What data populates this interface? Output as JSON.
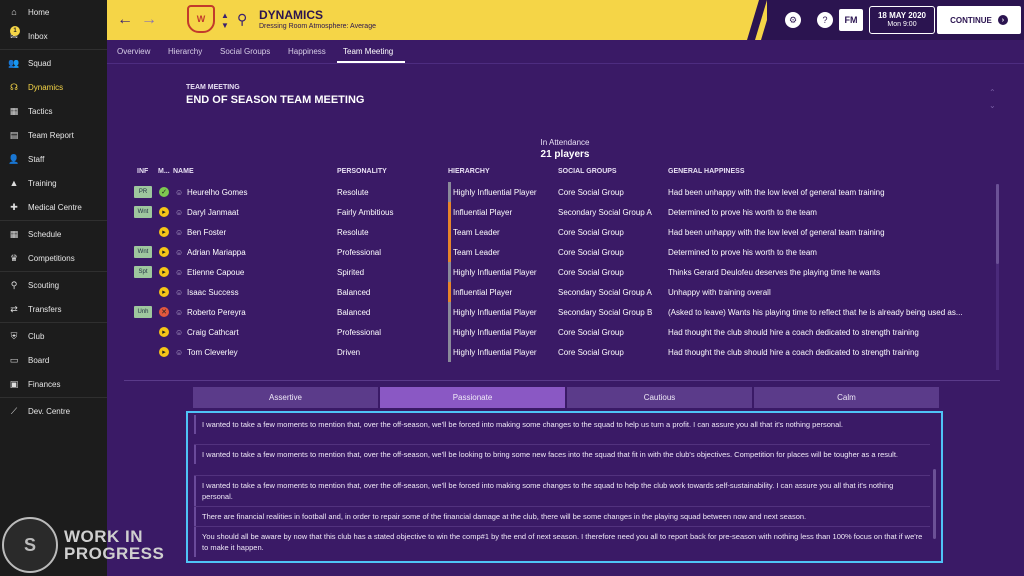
{
  "sidebar": {
    "items": [
      {
        "label": "Home",
        "icon": "home-icon",
        "glyph": "⌂"
      },
      {
        "label": "Inbox",
        "icon": "inbox-icon",
        "glyph": "✉",
        "badge": "1"
      },
      {
        "label": "Squad",
        "icon": "squad-icon",
        "glyph": "👥"
      },
      {
        "label": "Dynamics",
        "icon": "dynamics-icon",
        "glyph": "☊"
      },
      {
        "label": "Tactics",
        "icon": "tactics-icon",
        "glyph": "▦"
      },
      {
        "label": "Team Report",
        "icon": "team-report-icon",
        "glyph": "▤"
      },
      {
        "label": "Staff",
        "icon": "staff-icon",
        "glyph": "👤"
      },
      {
        "label": "Training",
        "icon": "training-icon",
        "glyph": "▲"
      },
      {
        "label": "Medical Centre",
        "icon": "medical-icon",
        "glyph": "✚"
      },
      {
        "label": "Schedule",
        "icon": "schedule-icon",
        "glyph": "▦"
      },
      {
        "label": "Competitions",
        "icon": "trophy-icon",
        "glyph": "♛"
      },
      {
        "label": "Scouting",
        "icon": "scouting-icon",
        "glyph": "⚲"
      },
      {
        "label": "Transfers",
        "icon": "transfers-icon",
        "glyph": "⇄"
      },
      {
        "label": "Club",
        "icon": "club-icon",
        "glyph": "⛨"
      },
      {
        "label": "Board",
        "icon": "board-icon",
        "glyph": "▭"
      },
      {
        "label": "Finances",
        "icon": "finances-icon",
        "glyph": "▣"
      },
      {
        "label": "Dev. Centre",
        "icon": "dev-centre-icon",
        "glyph": "⟋"
      }
    ],
    "active": "Dynamics"
  },
  "watermark": {
    "line1": "WORK IN",
    "line2": "PROGRESS"
  },
  "header": {
    "title": "DYNAMICS",
    "subtitle": "Dressing Room Atmosphere: Average",
    "fm_logo": "FM",
    "date": "18 MAY 2020",
    "time": "Mon 9:00",
    "continue_label": "CONTINUE"
  },
  "tabs": [
    "Overview",
    "Hierarchy",
    "Social Groups",
    "Happiness",
    "Team Meeting"
  ],
  "active_tab": "Team Meeting",
  "meeting": {
    "label": "TEAM MEETING",
    "title": "END OF SEASON TEAM MEETING",
    "attendance_label": "In Attendance",
    "attendance_count": "21 players"
  },
  "table": {
    "headers": {
      "inf": "INF",
      "m": "M...",
      "name": "NAME",
      "personality": "PERSONALITY",
      "hierarchy": "HIERARCHY",
      "social": "SOCIAL GROUPS",
      "happiness": "GENERAL HAPPINESS"
    },
    "rows": [
      {
        "inf": "PR",
        "morale": "good",
        "name": "Heurelho Gomes",
        "personality": "Resolute",
        "hierarchy": "Highly Influential Player",
        "social": "Core Social Group",
        "happiness": "Had been unhappy with the low level of general team training"
      },
      {
        "inf": "Wnt",
        "morale": "ok",
        "name": "Daryl Janmaat",
        "personality": "Fairly Ambitious",
        "hierarchy": "Influential Player",
        "social": "Secondary Social Group A",
        "happiness": "Determined to prove his worth to the team"
      },
      {
        "inf": "",
        "morale": "ok",
        "name": "Ben Foster",
        "personality": "Resolute",
        "hierarchy": "Team Leader",
        "social": "Core Social Group",
        "happiness": "Had been unhappy with the low level of general team training"
      },
      {
        "inf": "Wnt",
        "morale": "fine",
        "name": "Adrian Mariappa",
        "personality": "Professional",
        "hierarchy": "Team Leader",
        "social": "Core Social Group",
        "happiness": "Determined to prove his worth to the team"
      },
      {
        "inf": "Spt",
        "morale": "ok",
        "name": "Etienne Capoue",
        "personality": "Spirited",
        "hierarchy": "Highly Influential Player",
        "social": "Core Social Group",
        "happiness": "Thinks Gerard Deulofeu deserves the playing time he wants"
      },
      {
        "inf": "",
        "morale": "ok",
        "name": "Isaac Success",
        "personality": "Balanced",
        "hierarchy": "Influential Player",
        "social": "Secondary Social Group A",
        "happiness": "Unhappy with training overall"
      },
      {
        "inf": "Unh",
        "morale": "bad",
        "name": "Roberto Pereyra",
        "personality": "Balanced",
        "hierarchy": "Highly Influential Player",
        "social": "Secondary Social Group B",
        "happiness": "(Asked to leave) Wants his playing time to reflect that he is already being used as..."
      },
      {
        "inf": "",
        "morale": "fine",
        "name": "Craig Cathcart",
        "personality": "Professional",
        "hierarchy": "Highly Influential Player",
        "social": "Core Social Group",
        "happiness": "Had thought the club should hire a coach dedicated to strength training"
      },
      {
        "inf": "",
        "morale": "fine",
        "name": "Tom Cleverley",
        "personality": "Driven",
        "hierarchy": "Highly Influential Player",
        "social": "Core Social Group",
        "happiness": "Had thought the club should hire a coach dedicated to strength training"
      }
    ]
  },
  "tones": [
    "Assertive",
    "Passionate",
    "Cautious",
    "Calm"
  ],
  "active_tone": "Passionate",
  "options": [
    "I wanted to take a few moments to mention that, over the off-season, we'll be forced into making some changes to the squad to help us turn a profit. I can assure you all that it's nothing personal.",
    "I wanted to take a few moments to mention that, over the off-season, we'll be looking to bring some new faces into the squad that fit in with the club's objectives. Competition for places will be tougher as a result.",
    "I wanted to take a few moments to mention that, over the off-season, we'll be forced into making some changes to the squad to help the club work towards self-sustainability. I can assure you all that it's nothing personal.",
    "There are financial realities in football and, in order to repair some of the financial damage at the club, there will be some changes in the playing squad between now and next season.",
    "You should all be aware by now that this club has a stated objective to win the comp#1 by the end of next season. I therefore need you all to report back for pre-season with nothing less than 100% focus on that if we're to make it happen."
  ],
  "colors": {
    "accent": "#f5d547",
    "background": "#3a1a66",
    "selection": "#4fc3f7",
    "morale_good": "#7ec850",
    "morale_ok": "#f5c518",
    "morale_bad": "#e2583e"
  }
}
